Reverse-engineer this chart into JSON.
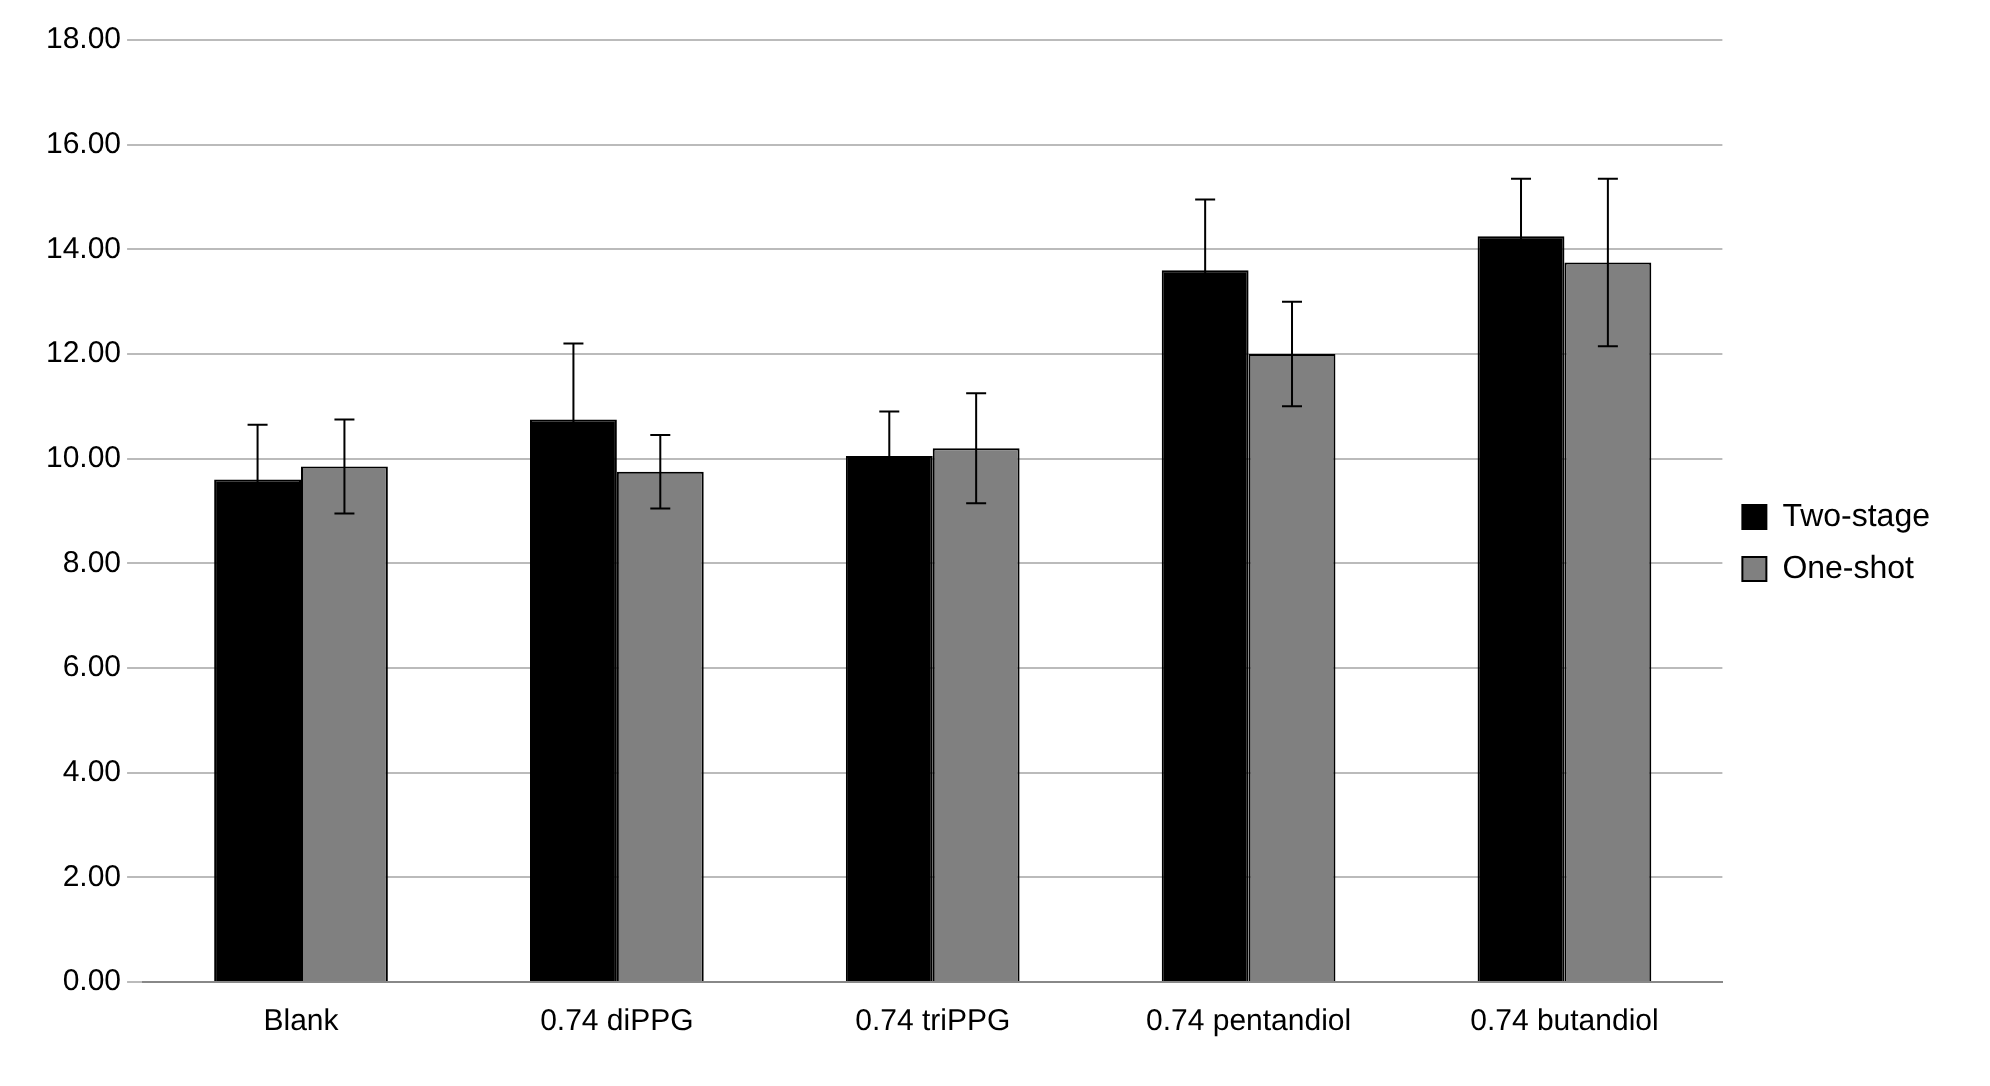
{
  "chart_data": {
    "type": "bar",
    "categories": [
      "Blank",
      "0.74 diPPG",
      "0.74 triPPG",
      "0.74 pentandiol",
      "0.74 butandiol"
    ],
    "series": [
      {
        "name": "Two-stage",
        "color": "#000000",
        "values": [
          9.6,
          10.75,
          10.05,
          13.6,
          14.25
        ],
        "errors": [
          1.05,
          1.45,
          0.85,
          1.35,
          1.1
        ]
      },
      {
        "name": "One-shot",
        "color": "#808080",
        "values": [
          9.85,
          9.75,
          10.2,
          12.0,
          13.75
        ],
        "errors": [
          0.9,
          0.7,
          1.05,
          1.0,
          1.6
        ]
      }
    ],
    "ylim": [
      0,
      18
    ],
    "yticks": [
      {
        "value": 0,
        "label": "0.00"
      },
      {
        "value": 2,
        "label": "2.00"
      },
      {
        "value": 4,
        "label": "4.00"
      },
      {
        "value": 6,
        "label": "6.00"
      },
      {
        "value": 8,
        "label": "8.00"
      },
      {
        "value": 10,
        "label": "10.00"
      },
      {
        "value": 12,
        "label": "12.00"
      },
      {
        "value": 14,
        "label": "14.00"
      },
      {
        "value": 16,
        "label": "16.00"
      },
      {
        "value": 18,
        "label": "18.00"
      }
    ],
    "grid": "y",
    "legend": "right"
  }
}
